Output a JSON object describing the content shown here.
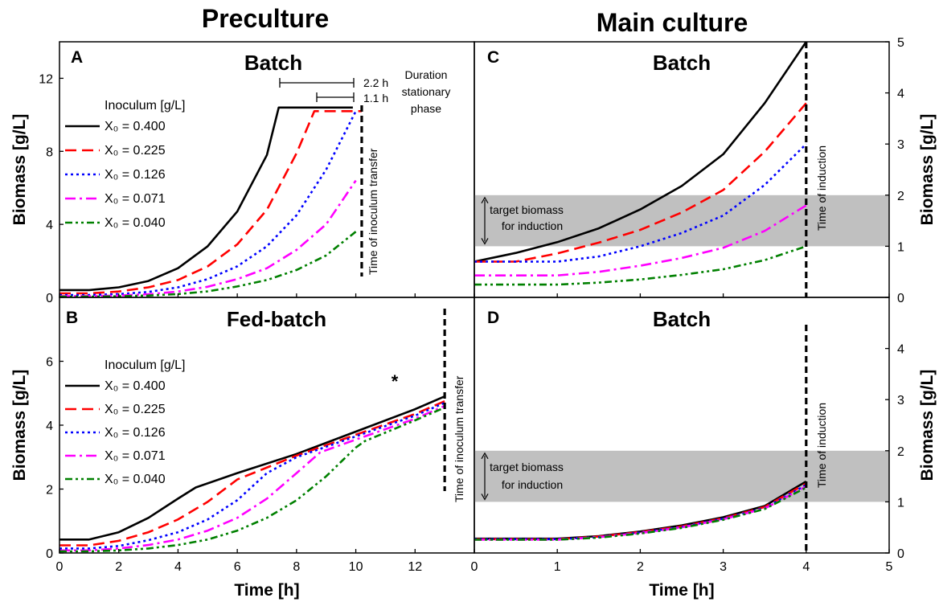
{
  "headers": {
    "left": "Preculture",
    "right": "Main culture"
  },
  "legend": {
    "title": "Inoculum [g/L]",
    "entries": [
      "X₀ = 0.400",
      "X₀ = 0.225",
      "X₀ = 0.126",
      "X₀ = 0.071",
      "X₀ = 0.040"
    ],
    "colors": [
      "#000000",
      "#ff0000",
      "#0000ff",
      "#ff00ff",
      "#008000"
    ],
    "styles": [
      "solid",
      "long-dash",
      "dot",
      "dash-dot",
      "dash-dot-dot"
    ]
  },
  "annotations": {
    "inoculum_transfer": "Time of inoculum transfer",
    "induction": "Time of induction",
    "target1": "target biomass",
    "target2": "for induction",
    "duration1": "Duration",
    "duration2": "stationary",
    "duration3": "phase",
    "bracket_22": "2.2 h",
    "bracket_11": "1.1 h",
    "asterisk": "*"
  },
  "chart_data": [
    {
      "panel": "A",
      "title": "Batch",
      "type": "line",
      "xlabel": "",
      "ylabel": "Biomass [g/L]",
      "xlim": [
        0,
        14
      ],
      "ylim": [
        0,
        14
      ],
      "xticks": [
        0,
        2,
        4,
        6,
        8,
        10,
        12
      ],
      "yticks": [
        0,
        4,
        8,
        12
      ],
      "vline_x": 10.2,
      "series": [
        {
          "name": "X₀ = 0.400",
          "x": [
            0,
            1,
            2,
            3,
            4,
            5,
            6,
            7,
            7.4,
            9.9
          ],
          "y": [
            0.4,
            0.4,
            0.55,
            0.9,
            1.6,
            2.8,
            4.7,
            7.8,
            10.4,
            10.4
          ]
        },
        {
          "name": "X₀ = 0.225",
          "x": [
            0,
            1,
            2,
            3,
            4,
            5,
            6,
            7,
            8,
            8.6,
            10.2
          ],
          "y": [
            0.22,
            0.22,
            0.32,
            0.55,
            0.95,
            1.7,
            2.9,
            4.8,
            7.9,
            10.2,
            10.2
          ]
        },
        {
          "name": "X₀ = 0.126",
          "x": [
            0,
            1,
            2,
            3,
            4,
            5,
            6,
            7,
            8,
            9,
            10.0
          ],
          "y": [
            0.13,
            0.13,
            0.18,
            0.3,
            0.55,
            1.0,
            1.7,
            2.8,
            4.5,
            7.0,
            10.2
          ]
        },
        {
          "name": "X₀ = 0.071",
          "x": [
            0,
            1,
            2,
            3,
            4,
            5,
            6,
            7,
            8,
            9,
            10.0
          ],
          "y": [
            0.07,
            0.07,
            0.1,
            0.17,
            0.32,
            0.58,
            1.0,
            1.6,
            2.6,
            4.0,
            6.4
          ]
        },
        {
          "name": "X₀ = 0.040",
          "x": [
            0,
            1,
            2,
            3,
            4,
            5,
            6,
            7,
            8,
            9,
            10.0
          ],
          "y": [
            0.04,
            0.04,
            0.06,
            0.1,
            0.18,
            0.33,
            0.6,
            0.95,
            1.5,
            2.3,
            3.6
          ]
        }
      ]
    },
    {
      "panel": "B",
      "title": "Fed-batch",
      "type": "line",
      "xlabel": "Time [h]",
      "ylabel": "Biomass [g/L]",
      "xlim": [
        0,
        14
      ],
      "ylim": [
        0,
        8
      ],
      "xticks": [
        0,
        2,
        4,
        6,
        8,
        10,
        12
      ],
      "yticks": [
        0,
        2,
        4,
        6
      ],
      "vline_x": 13,
      "series": [
        {
          "name": "X₀ = 0.400",
          "x": [
            0,
            1,
            2,
            3,
            4,
            4.6,
            6,
            8,
            10,
            12,
            13
          ],
          "y": [
            0.42,
            0.42,
            0.65,
            1.1,
            1.7,
            2.05,
            2.5,
            3.1,
            3.8,
            4.5,
            4.9
          ]
        },
        {
          "name": "X₀ = 0.225",
          "x": [
            0,
            1,
            2,
            3,
            4,
            5,
            6,
            8,
            10,
            12,
            13
          ],
          "y": [
            0.24,
            0.24,
            0.38,
            0.65,
            1.05,
            1.6,
            2.3,
            3.05,
            3.7,
            4.35,
            4.75
          ]
        },
        {
          "name": "X₀ = 0.126",
          "x": [
            0,
            1,
            2,
            3,
            4,
            5,
            6,
            7,
            8,
            10,
            12,
            13
          ],
          "y": [
            0.14,
            0.14,
            0.22,
            0.4,
            0.65,
            1.05,
            1.65,
            2.5,
            3.0,
            3.65,
            4.3,
            4.7
          ]
        },
        {
          "name": "X₀ = 0.071",
          "x": [
            0,
            1,
            2,
            3,
            4,
            5,
            6,
            7,
            8,
            8.8,
            10,
            12,
            13
          ],
          "y": [
            0.08,
            0.08,
            0.14,
            0.25,
            0.42,
            0.7,
            1.1,
            1.7,
            2.5,
            3.15,
            3.55,
            4.2,
            4.6
          ]
        },
        {
          "name": "X₀ = 0.040",
          "x": [
            0,
            1,
            2,
            3,
            4,
            5,
            6,
            7,
            8,
            9,
            10,
            10.3,
            12,
            13
          ],
          "y": [
            0.05,
            0.05,
            0.08,
            0.14,
            0.25,
            0.42,
            0.7,
            1.1,
            1.65,
            2.4,
            3.3,
            3.5,
            4.15,
            4.55
          ]
        }
      ]
    },
    {
      "panel": "C",
      "title": "Batch",
      "type": "line",
      "xlabel": "",
      "ylabel": "Biomass [g/L]",
      "xlim": [
        0,
        5
      ],
      "ylim": [
        0,
        5
      ],
      "xticks": [
        0,
        1,
        2,
        3,
        4,
        5
      ],
      "yticks": [
        0,
        1,
        2,
        3,
        4,
        5
      ],
      "vline_x": 4,
      "target_band": [
        1,
        2
      ],
      "series": [
        {
          "name": "X₀ = 0.400",
          "x": [
            0,
            0.5,
            1,
            1.5,
            2,
            2.5,
            3,
            3.5,
            4
          ],
          "y": [
            0.7,
            0.87,
            1.08,
            1.35,
            1.72,
            2.18,
            2.8,
            3.8,
            5.0
          ]
        },
        {
          "name": "X₀ = 0.225",
          "x": [
            0,
            0.5,
            1,
            1.5,
            2,
            2.5,
            3,
            3.5,
            4
          ],
          "y": [
            0.7,
            0.7,
            0.86,
            1.07,
            1.32,
            1.66,
            2.1,
            2.85,
            3.8
          ]
        },
        {
          "name": "X₀ = 0.126",
          "x": [
            0,
            0.5,
            1,
            1.5,
            2,
            2.5,
            3,
            3.5,
            4
          ],
          "y": [
            0.7,
            0.7,
            0.7,
            0.8,
            1.0,
            1.26,
            1.6,
            2.2,
            3.0
          ]
        },
        {
          "name": "X₀ = 0.071",
          "x": [
            0,
            0.5,
            1,
            1.5,
            2,
            2.5,
            3,
            3.5,
            4
          ],
          "y": [
            0.43,
            0.43,
            0.43,
            0.5,
            0.62,
            0.77,
            0.97,
            1.3,
            1.8
          ]
        },
        {
          "name": "X₀ = 0.040",
          "x": [
            0,
            0.5,
            1,
            1.5,
            2,
            2.5,
            3,
            3.5,
            4
          ],
          "y": [
            0.25,
            0.25,
            0.25,
            0.29,
            0.35,
            0.44,
            0.55,
            0.73,
            1.0
          ]
        }
      ]
    },
    {
      "panel": "D",
      "title": "Batch",
      "type": "line",
      "xlabel": "Time [h]",
      "ylabel": "Biomass [g/L]",
      "xlim": [
        0,
        5
      ],
      "ylim": [
        0,
        5
      ],
      "xticks": [
        0,
        1,
        2,
        3,
        4,
        5
      ],
      "yticks": [
        0,
        1,
        2,
        3,
        4
      ],
      "vline_x": 4,
      "target_band": [
        1,
        2
      ],
      "series": [
        {
          "name": "X₀ = 0.400",
          "x": [
            0,
            0.5,
            1,
            1.5,
            2,
            2.5,
            3,
            3.5,
            4
          ],
          "y": [
            0.28,
            0.28,
            0.28,
            0.33,
            0.42,
            0.54,
            0.7,
            0.92,
            1.4
          ]
        },
        {
          "name": "X₀ = 0.225",
          "x": [
            0,
            0.5,
            1,
            1.5,
            2,
            2.5,
            3,
            3.5,
            4
          ],
          "y": [
            0.27,
            0.27,
            0.27,
            0.32,
            0.41,
            0.52,
            0.68,
            0.9,
            1.36
          ]
        },
        {
          "name": "X₀ = 0.126",
          "x": [
            0,
            0.5,
            1,
            1.5,
            2,
            2.5,
            3,
            3.5,
            4
          ],
          "y": [
            0.27,
            0.27,
            0.27,
            0.31,
            0.4,
            0.51,
            0.67,
            0.88,
            1.33
          ]
        },
        {
          "name": "X₀ = 0.071",
          "x": [
            0,
            0.5,
            1,
            1.5,
            2,
            2.5,
            3,
            3.5,
            4
          ],
          "y": [
            0.26,
            0.26,
            0.26,
            0.31,
            0.39,
            0.5,
            0.66,
            0.87,
            1.3
          ]
        },
        {
          "name": "X₀ = 0.040",
          "x": [
            0,
            0.5,
            1,
            1.5,
            2,
            2.5,
            3,
            3.5,
            4
          ],
          "y": [
            0.26,
            0.26,
            0.26,
            0.3,
            0.38,
            0.49,
            0.65,
            0.86,
            1.28
          ]
        }
      ]
    }
  ]
}
